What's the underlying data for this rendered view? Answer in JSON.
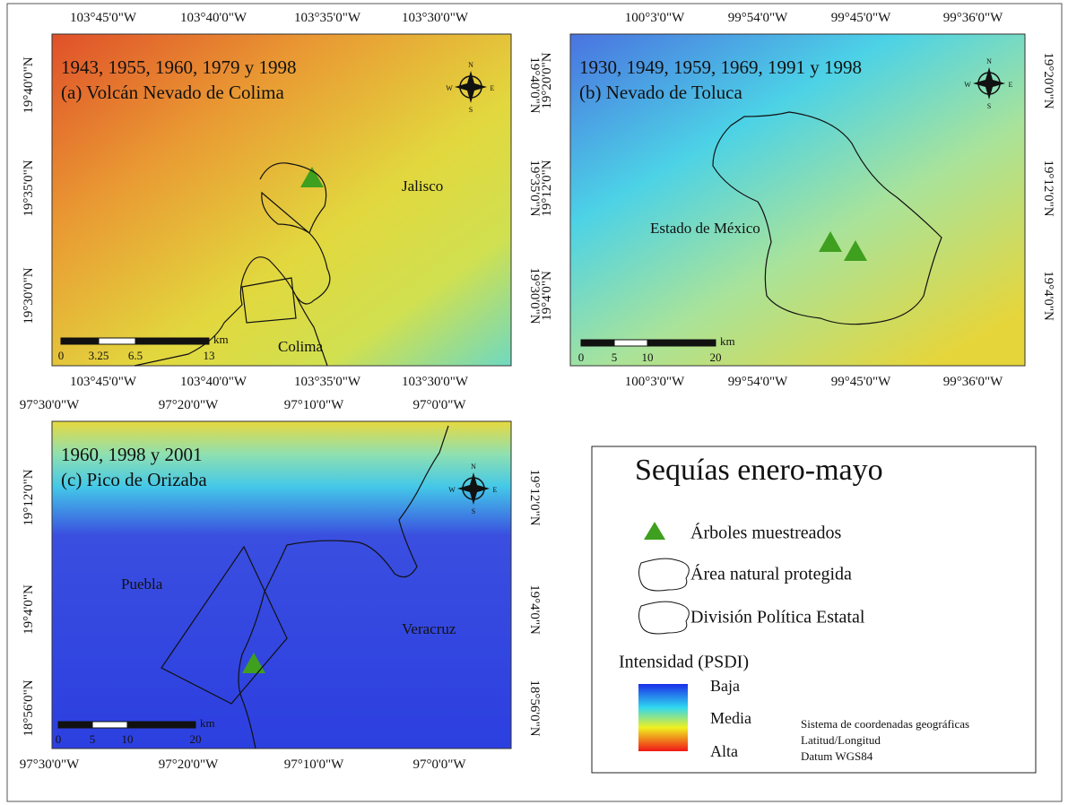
{
  "compass": [
    "N",
    "S",
    "E",
    "W"
  ],
  "maps": [
    {
      "years": "1943, 1955, 1960, 1979 y 1998",
      "label": "(a) Volcán Nevado de Colima",
      "regions": [
        "Jalisco",
        "Colima"
      ],
      "x_ticks": [
        "103°45'0\"W",
        "103°40'0\"W",
        "103°35'0\"W",
        "103°30'0\"W"
      ],
      "y_ticks": [
        "19°40'0\"N",
        "19°35'0\"N",
        "19°30'0\"N"
      ],
      "scale_labels": [
        "0",
        "3.25",
        "6.5",
        "13"
      ],
      "scale_unit": "km"
    },
    {
      "years": "1930, 1949, 1959, 1969, 1991 y 1998",
      "label": "(b) Nevado de Toluca",
      "regions": [
        "Estado de México"
      ],
      "x_ticks": [
        "100°3'0\"W",
        "99°54'0\"W",
        "99°45'0\"W",
        "99°36'0\"W"
      ],
      "y_ticks": [
        "19°20'0\"N",
        "19°12'0\"N",
        "19°4'0\"N"
      ],
      "scale_labels": [
        "0",
        "5",
        "10",
        "20"
      ],
      "scale_unit": "km"
    },
    {
      "years": "1960, 1998 y 2001",
      "label": "(c) Pico de Orizaba",
      "regions": [
        "Puebla",
        "Veracruz"
      ],
      "x_ticks": [
        "97°30'0\"W",
        "97°20'0\"W",
        "97°10'0\"W",
        "97°0'0\"W"
      ],
      "y_ticks": [
        "19°12'0\"N",
        "19°4'0\"N",
        "18°56'0\"N"
      ],
      "scale_labels": [
        "0",
        "5",
        "10",
        "20"
      ],
      "scale_unit": "km"
    }
  ],
  "legend": {
    "title": "Sequías enero-mayo",
    "items": [
      "Árboles muestreados",
      "Área natural protegida",
      "División Política Estatal"
    ],
    "intensity_title": "Intensidad (PSDI)",
    "intensity_levels": [
      "Baja",
      "Media",
      "Alta"
    ],
    "crs": [
      "Sistema de coordenadas geográficas",
      "Latitud/Longitud",
      "Datum WGS84"
    ]
  }
}
